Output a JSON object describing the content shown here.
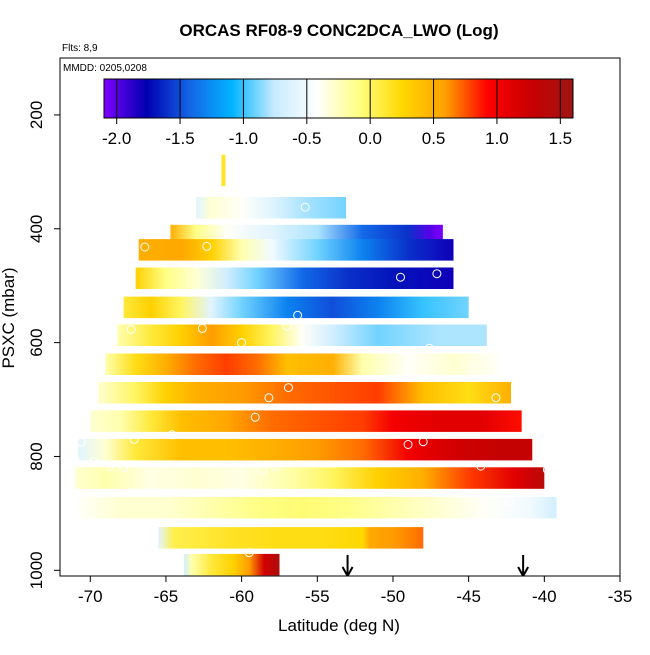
{
  "chart_data": {
    "type": "heatmap",
    "title": "ORCAS RF08-9 CONC2DCA_LWO (Log)",
    "annotations": {
      "flights": "Flts: 8,9",
      "dates": "MMDD: 0205,0208"
    },
    "xlabel": "Latitude (deg N)",
    "ylabel": "PSXC (mbar)",
    "xlim": [
      -72,
      -35
    ],
    "ylim": [
      1010,
      100
    ],
    "x_ticks": [
      -70,
      -65,
      -60,
      -55,
      -50,
      -45,
      -40,
      -35
    ],
    "y_ticks": [
      200,
      400,
      600,
      800,
      1000
    ],
    "colorbar": {
      "range": [
        -2.1,
        1.6
      ],
      "ticks": [
        -2.0,
        -1.5,
        -1.0,
        -0.5,
        0.0,
        0.5,
        1.0,
        1.5
      ],
      "tick_labels": [
        "-2.0",
        "-1.5",
        "-1.0",
        "-0.5",
        "0.0",
        "0.5",
        "1.0",
        "1.5"
      ],
      "colors": [
        "#7f00ff",
        "#0000b0",
        "#1464e6",
        "#00b4ff",
        "#c8ebff",
        "#ffffff",
        "#ffff80",
        "#ffd700",
        "#ffa000",
        "#ff0000",
        "#c80000",
        "#a01414"
      ]
    },
    "rows": [
      {
        "p": 363,
        "x0": -63.0,
        "x1": -53.1,
        "stops": [
          [
            -63.0,
            -0.6
          ],
          [
            -62.0,
            -0.3
          ],
          [
            -60.0,
            -0.4
          ],
          [
            -58.0,
            -0.6
          ],
          [
            -56.0,
            -0.8
          ],
          [
            -53.1,
            -0.9
          ]
        ]
      },
      {
        "p": 412,
        "x0": -64.7,
        "x1": -46.7,
        "stops": [
          [
            -64.7,
            0.5
          ],
          [
            -63.0,
            -0.1
          ],
          [
            -61.0,
            -0.4
          ],
          [
            -58.0,
            -0.6
          ],
          [
            -55.0,
            -0.8
          ],
          [
            -52.0,
            -1.4
          ],
          [
            -49.0,
            -1.6
          ],
          [
            -47.5,
            -2.0
          ],
          [
            -46.7,
            -2.1
          ]
        ]
      },
      {
        "p": 437,
        "x0": -66.8,
        "x1": -46.0,
        "stops": [
          [
            -66.8,
            0.5
          ],
          [
            -64.0,
            0.55
          ],
          [
            -62.0,
            0.3
          ],
          [
            -60.0,
            -0.2
          ],
          [
            -58.0,
            -0.5
          ],
          [
            -55.0,
            -0.9
          ],
          [
            -52.0,
            -1.3
          ],
          [
            -49.0,
            -1.6
          ],
          [
            -46.0,
            -1.8
          ]
        ]
      },
      {
        "p": 487,
        "x0": -67.0,
        "x1": -46.0,
        "stops": [
          [
            -67.0,
            0.3
          ],
          [
            -65.0,
            -0.1
          ],
          [
            -63.0,
            -0.3
          ],
          [
            -61.0,
            -0.7
          ],
          [
            -59.0,
            -0.9
          ],
          [
            -56.0,
            -1.4
          ],
          [
            -53.0,
            -1.6
          ],
          [
            -50.0,
            -1.7
          ],
          [
            -46.0,
            -1.8
          ]
        ]
      },
      {
        "p": 538,
        "x0": -67.8,
        "x1": -45.0,
        "stops": [
          [
            -67.8,
            0.1
          ],
          [
            -66.0,
            0.3
          ],
          [
            -64.0,
            0.0
          ],
          [
            -62.0,
            -0.6
          ],
          [
            -60.0,
            -0.9
          ],
          [
            -57.0,
            -1.3
          ],
          [
            -54.0,
            -1.5
          ],
          [
            -51.0,
            -1.3
          ],
          [
            -48.0,
            -1.0
          ],
          [
            -45.0,
            -0.9
          ]
        ]
      },
      {
        "p": 587,
        "x0": -68.2,
        "x1": -43.8,
        "stops": [
          [
            -68.2,
            -0.2
          ],
          [
            -66.0,
            0.1
          ],
          [
            -64.0,
            0.3
          ],
          [
            -62.0,
            0.6
          ],
          [
            -60.0,
            0.3
          ],
          [
            -58.0,
            0.0
          ],
          [
            -56.0,
            -0.4
          ],
          [
            -54.0,
            -0.7
          ],
          [
            -51.0,
            -0.9
          ],
          [
            -47.0,
            -0.8
          ],
          [
            -43.8,
            -0.8
          ]
        ]
      },
      {
        "p": 638,
        "x0": -69.0,
        "x1": -43.0,
        "stops": [
          [
            -69.0,
            -0.2
          ],
          [
            -67.0,
            0.2
          ],
          [
            -65.0,
            0.5
          ],
          [
            -63.0,
            0.7
          ],
          [
            -61.0,
            0.8
          ],
          [
            -59.0,
            0.7
          ],
          [
            -57.0,
            0.4
          ],
          [
            -54.0,
            0.5
          ],
          [
            -52.0,
            -0.2
          ],
          [
            -49.0,
            -0.4
          ],
          [
            -46.0,
            -0.3
          ],
          [
            -43.0,
            -0.4
          ]
        ]
      },
      {
        "p": 688,
        "x0": -69.5,
        "x1": -42.2,
        "stops": [
          [
            -69.5,
            -0.3
          ],
          [
            -67.0,
            0.0
          ],
          [
            -65.0,
            0.3
          ],
          [
            -63.0,
            0.5
          ],
          [
            -60.0,
            0.6
          ],
          [
            -57.0,
            0.7
          ],
          [
            -54.0,
            0.75
          ],
          [
            -51.0,
            0.8
          ],
          [
            -48.0,
            0.4
          ],
          [
            -45.0,
            0.2
          ],
          [
            -42.2,
            0.5
          ]
        ]
      },
      {
        "p": 738,
        "x0": -70.0,
        "x1": -41.5,
        "stops": [
          [
            -70.0,
            -0.3
          ],
          [
            -68.0,
            -0.2
          ],
          [
            -66.0,
            0.1
          ],
          [
            -64.0,
            0.4
          ],
          [
            -61.0,
            0.55
          ],
          [
            -58.0,
            0.7
          ],
          [
            -55.0,
            0.75
          ],
          [
            -52.0,
            0.8
          ],
          [
            -50.0,
            1.0
          ],
          [
            -47.0,
            1.1
          ],
          [
            -44.0,
            1.1
          ],
          [
            -41.5,
            0.9
          ]
        ]
      },
      {
        "p": 788,
        "x0": -70.8,
        "x1": -40.8,
        "stops": [
          [
            -70.8,
            -0.6
          ],
          [
            -69.0,
            -0.3
          ],
          [
            -67.0,
            0.1
          ],
          [
            -64.0,
            0.4
          ],
          [
            -61.0,
            0.4
          ],
          [
            -58.0,
            0.5
          ],
          [
            -55.0,
            0.6
          ],
          [
            -52.0,
            0.7
          ],
          [
            -49.0,
            1.0
          ],
          [
            -46.0,
            1.2
          ],
          [
            -43.0,
            1.3
          ],
          [
            -40.8,
            1.3
          ]
        ]
      },
      {
        "p": 838,
        "x0": -71.0,
        "x1": -40.0,
        "stops": [
          [
            -71.0,
            -0.3
          ],
          [
            -69.0,
            -0.2
          ],
          [
            -66.0,
            -0.35
          ],
          [
            -63.0,
            -0.3
          ],
          [
            -60.0,
            -0.35
          ],
          [
            -57.0,
            -0.2
          ],
          [
            -54.0,
            0.0
          ],
          [
            -51.0,
            0.3
          ],
          [
            -48.0,
            0.5
          ],
          [
            -45.0,
            0.8
          ],
          [
            -42.0,
            1.1
          ],
          [
            -40.0,
            1.4
          ]
        ]
      },
      {
        "p": 890,
        "x0": -70.8,
        "x1": -39.2,
        "stops": [
          [
            -70.8,
            -0.4
          ],
          [
            -68.0,
            -0.3
          ],
          [
            -65.0,
            -0.3
          ],
          [
            -62.0,
            -0.2
          ],
          [
            -59.0,
            -0.1
          ],
          [
            -56.0,
            -0.05
          ],
          [
            -53.0,
            -0.1
          ],
          [
            -50.0,
            -0.2
          ],
          [
            -47.0,
            -0.3
          ],
          [
            -44.0,
            -0.4
          ],
          [
            -41.0,
            -0.5
          ],
          [
            -39.2,
            -0.7
          ]
        ]
      },
      {
        "p": 943,
        "x0": -65.5,
        "x1": -48.0,
        "stops": [
          [
            -65.5,
            -0.6
          ],
          [
            -64.5,
            0.05
          ],
          [
            -61.0,
            0.15
          ],
          [
            -58.0,
            0.2
          ],
          [
            -55.0,
            0.2
          ],
          [
            -52.0,
            0.25
          ],
          [
            -51.5,
            0.55
          ],
          [
            -50.0,
            0.6
          ],
          [
            -48.0,
            0.7
          ]
        ]
      },
      {
        "p": 990,
        "x0": -63.8,
        "x1": -57.5,
        "stops": [
          [
            -63.8,
            -0.7
          ],
          [
            -63.3,
            -0.2
          ],
          [
            -62.0,
            0.1
          ],
          [
            -60.5,
            0.3
          ],
          [
            -59.5,
            0.6
          ],
          [
            -58.5,
            1.2
          ],
          [
            -57.5,
            1.5
          ]
        ]
      }
    ],
    "sparse_strip": {
      "x": -61.2,
      "p0": 270,
      "p1": 325,
      "value": 0.15
    },
    "points": [
      [
        -62.0,
        334
      ],
      [
        -55.8,
        362
      ],
      [
        -49.8,
        377
      ],
      [
        -47.1,
        373
      ],
      [
        -66.4,
        432
      ],
      [
        -62.3,
        431
      ],
      [
        -49.5,
        485
      ],
      [
        -47.1,
        479
      ],
      [
        -45.3,
        510
      ],
      [
        -56.3,
        552
      ],
      [
        -67.3,
        577
      ],
      [
        -62.6,
        575
      ],
      [
        -57.0,
        571
      ],
      [
        -60.0,
        600
      ],
      [
        -49.3,
        614
      ],
      [
        -47.6,
        610
      ],
      [
        -44.7,
        646
      ],
      [
        -58.2,
        697
      ],
      [
        -56.9,
        679
      ],
      [
        -43.2,
        697
      ],
      [
        -59.1,
        731
      ],
      [
        -64.6,
        762
      ],
      [
        -67.1,
        770
      ],
      [
        -70.6,
        775
      ],
      [
        -49.0,
        779
      ],
      [
        -48.0,
        774
      ],
      [
        -71.0,
        807
      ],
      [
        -69.8,
        809
      ],
      [
        -68.7,
        818
      ],
      [
        -67.8,
        820
      ],
      [
        -58.6,
        824
      ],
      [
        -57.7,
        818
      ],
      [
        -44.2,
        817
      ],
      [
        -39.8,
        823
      ],
      [
        -42.3,
        879
      ],
      [
        -64.2,
        982
      ],
      [
        -59.5,
        969
      ]
    ],
    "markers": [
      {
        "type": "arrow",
        "x": -53.0
      },
      {
        "type": "arrow",
        "x": -41.4
      }
    ]
  }
}
